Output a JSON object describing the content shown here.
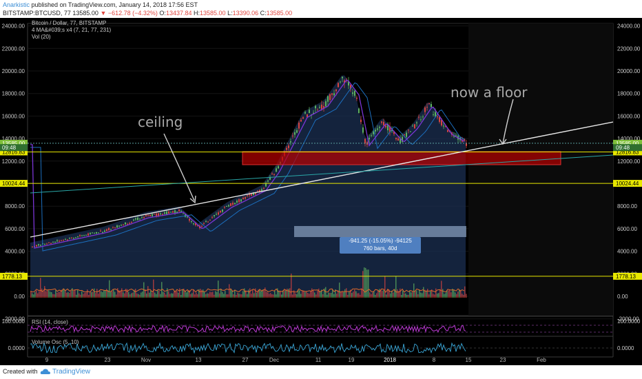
{
  "header": {
    "author": "Anarkistic",
    "published": "published on TradingView.com, January 14, 2018 17:56 EST",
    "symbol": "BITSTAMP:BTCUSD, 77",
    "last": "13585.00",
    "change": "▼ −612.78 (−4.32%)",
    "open_label": "O:",
    "open": "13437.84",
    "high_label": "H:",
    "high": "13585.00",
    "low_label": "L:",
    "low": "13390.06",
    "close_label": "C:",
    "close": "13585.00"
  },
  "legend": {
    "title": "Bitcoin / Dollar, 77, BITSTAMP",
    "ma": "4 MA&#039;s x4 (7, 21, 77, 231)",
    "vol": "Vol (20)"
  },
  "panes": {
    "rsi": "RSI (14, close)",
    "vosc": "Volume Osc (5, 10)"
  },
  "annotations": {
    "ceiling": "ceiling",
    "floor": "now a floor",
    "measure_line1": "-941.25 (-15.05%) -94125",
    "measure_line2": "760 bars, 40d"
  },
  "footer": {
    "created": "Created with",
    "brand": "TradingView"
  },
  "colors": {
    "background": "#000000",
    "up_candle": "#5fb35f",
    "down_candle": "#d9443f",
    "ma_purple": "#7b35d6",
    "trendline": "#e8e8e8",
    "hline": "#e8e800",
    "zone": "#b80000",
    "teal_line": "#2aa8a8",
    "rsi": "#c03ad9",
    "vosc": "#3aa8d9"
  },
  "chart_data": {
    "type": "candlestick",
    "title": "Bitcoin / Dollar, 77, BITSTAMP",
    "y_ticks": [
      "24000.00",
      "22000.00",
      "20000.00",
      "18000.00",
      "16000.00",
      "14000.00",
      "12000.00",
      "10000.00",
      "8000.00",
      "6000.00",
      "4000.00",
      "2000.00",
      "0.00",
      "-2000.00"
    ],
    "ylim": [
      -2500,
      25000
    ],
    "x_labels": [
      "9",
      "23",
      "Nov",
      "13",
      "27",
      "Dec",
      "11",
      "19",
      "2018",
      "8",
      "15",
      "23",
      "Feb"
    ],
    "price_points": [
      [
        "9",
        4400
      ],
      [
        "23",
        5800
      ],
      [
        "Nov",
        7100
      ],
      [
        "6",
        7600
      ],
      [
        "13",
        6100
      ],
      [
        "20",
        8000
      ],
      [
        "27",
        9500
      ],
      [
        "Dec",
        11200
      ],
      [
        "8",
        16000
      ],
      [
        "11",
        17000
      ],
      [
        "17",
        19400
      ],
      [
        "19",
        18000
      ],
      [
        "22",
        13500
      ],
      [
        "26",
        15500
      ],
      [
        "2018",
        13800
      ],
      [
        "3",
        15000
      ],
      [
        "8",
        17000
      ],
      [
        "11",
        14500
      ],
      [
        "15",
        13585
      ]
    ],
    "levels": [
      {
        "label": "13585.00",
        "value": 13585
      },
      {
        "label": "12816.83",
        "value": 12816.83
      },
      {
        "label": "10024.44",
        "value": 10024.44
      },
      {
        "label": "1778.13",
        "value": 1778.13
      },
      {
        "label": "09:48",
        "value": 13200
      }
    ],
    "vol_ticks": [
      "100.0000",
      "0.0000"
    ],
    "measure": {
      "change": "-941.25",
      "percent": "-15.05%",
      "ticks": "-94125",
      "bars": "760 bars, 40d"
    }
  }
}
